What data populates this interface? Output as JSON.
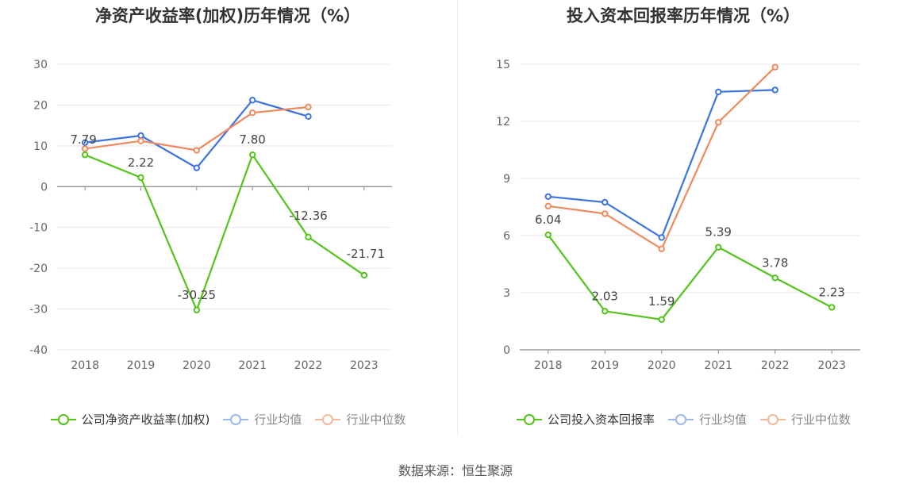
{
  "source": "数据来源：恒生聚源",
  "chart_data": [
    {
      "type": "line",
      "title": "净资产收益率(加权)历年情况（%）",
      "categories": [
        "2018",
        "2019",
        "2020",
        "2021",
        "2022",
        "2023"
      ],
      "ylim": [
        -40,
        30
      ],
      "yticks": [
        30,
        20,
        10,
        0,
        -10,
        -20,
        -30,
        -40
      ],
      "ytick_labels": [
        "30",
        "20",
        "10",
        "0",
        "-10",
        "-20",
        "-30",
        "-40"
      ],
      "grid": true,
      "legend_position": "bottom",
      "series": [
        {
          "name": "公司净资产收益率(加权)",
          "color": "#52c41a",
          "values": [
            7.79,
            2.22,
            -30.25,
            7.8,
            -12.36,
            -21.71
          ],
          "labels": [
            "7.79",
            "2.22",
            "-30.25",
            "7.80",
            "-12.36",
            "-21.71"
          ]
        },
        {
          "name": "行业均值",
          "color": "#3b74e0",
          "values": [
            10.8,
            12.5,
            4.6,
            21.2,
            17.2,
            null
          ]
        },
        {
          "name": "行业中位数",
          "color": "#f08a5d",
          "values": [
            9.3,
            11.2,
            8.9,
            18.1,
            19.5,
            null
          ]
        }
      ]
    },
    {
      "type": "line",
      "title": "投入资本回报率历年情况（%）",
      "categories": [
        "2018",
        "2019",
        "2020",
        "2021",
        "2022",
        "2023"
      ],
      "ylim": [
        0,
        15
      ],
      "yticks": [
        15,
        12,
        9,
        6,
        3,
        0
      ],
      "ytick_labels": [
        "15",
        "12",
        "9",
        "6",
        "3",
        "0"
      ],
      "grid": true,
      "legend_position": "bottom",
      "series": [
        {
          "name": "公司投入资本回报率",
          "color": "#52c41a",
          "values": [
            6.04,
            2.03,
            1.59,
            5.39,
            3.78,
            2.23
          ],
          "labels": [
            "6.04",
            "2.03",
            "1.59",
            "5.39",
            "3.78",
            "2.23"
          ]
        },
        {
          "name": "行业均值",
          "color": "#3b74e0",
          "values": [
            8.05,
            7.75,
            5.9,
            13.55,
            13.65,
            null
          ]
        },
        {
          "name": "行业中位数",
          "color": "#f08a5d",
          "values": [
            7.55,
            7.15,
            5.3,
            11.95,
            14.85,
            null
          ]
        }
      ]
    }
  ]
}
